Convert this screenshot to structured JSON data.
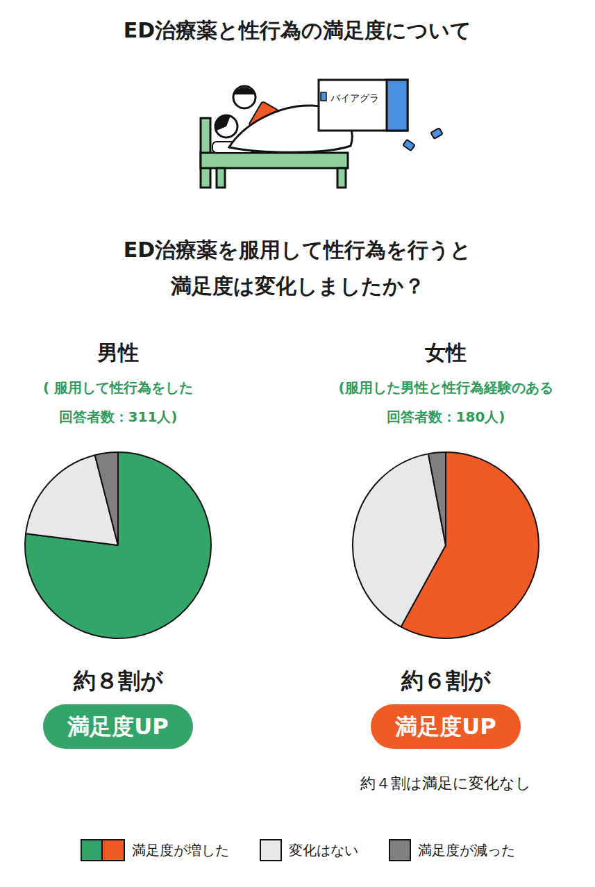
{
  "header": {
    "title": "ED治療薬と性行為の満足度について",
    "illustration_label": "バイアグラ",
    "question": [
      "ED治療薬を服用して性行為を行うと",
      "満足度は変化しましたか？"
    ]
  },
  "chart_data": [
    {
      "type": "pie",
      "title": "男性",
      "subtitle": [
        "( 服用して性行為をした",
        "回答者数：311人)"
      ],
      "categories": [
        "満足度が増した",
        "変化はない",
        "満足度が減った"
      ],
      "values": [
        77,
        19,
        4
      ],
      "colors": [
        "#34a56a",
        "#e8e8e8",
        "#808080"
      ],
      "annotation": "約８割が",
      "badge": "満足度UP",
      "legend": "bottom"
    },
    {
      "type": "pie",
      "title": "女性",
      "subtitle": [
        "(服用した男性と性行為経験のある",
        "回答者数：180人)"
      ],
      "categories": [
        "満足度が増した",
        "変化はない",
        "満足度が減った"
      ],
      "values": [
        58,
        39,
        3
      ],
      "colors": [
        "#f05a24",
        "#e8e8e8",
        "#808080"
      ],
      "annotation": "約６割が",
      "badge": "満足度UP",
      "note": "約４割は満足に変化なし",
      "legend": "bottom"
    }
  ]
}
